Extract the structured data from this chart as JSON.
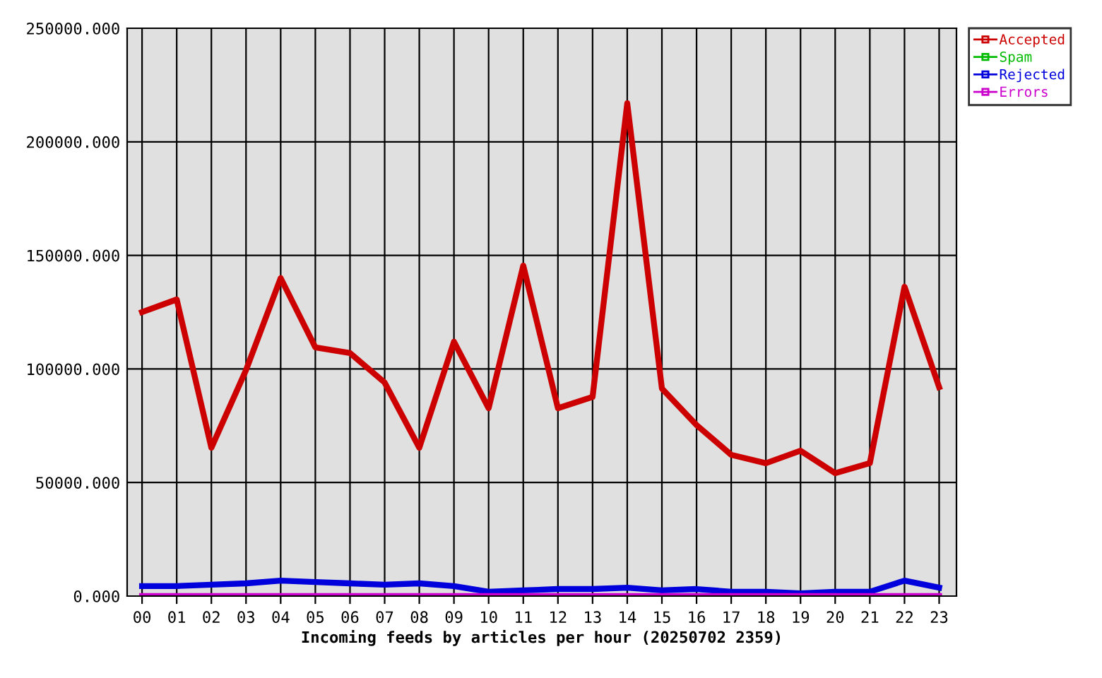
{
  "chart_data": {
    "type": "line",
    "xlabel": "Incoming feeds by articles per hour (20250702 2359)",
    "categories": [
      "00",
      "01",
      "02",
      "03",
      "04",
      "05",
      "06",
      "07",
      "08",
      "09",
      "10",
      "11",
      "12",
      "13",
      "14",
      "15",
      "16",
      "17",
      "18",
      "19",
      "20",
      "21",
      "22",
      "23"
    ],
    "series": [
      {
        "name": "Accepted",
        "color": "#cc0000",
        "values": [
          125000,
          130600,
          65300,
          99500,
          140000,
          109500,
          107000,
          94000,
          65300,
          112000,
          82700,
          145500,
          82700,
          87700,
          217000,
          91400,
          75300,
          62200,
          58500,
          64000,
          54100,
          58500,
          136200,
          92000
        ]
      },
      {
        "name": "Spam",
        "color": "#00bb00",
        "values": [
          null,
          null,
          null,
          null,
          null,
          null,
          null,
          null,
          null,
          null,
          null,
          null,
          null,
          null,
          null,
          null,
          null,
          null,
          null,
          null,
          null,
          null,
          null,
          null
        ]
      },
      {
        "name": "Rejected",
        "color": "#0000dd",
        "values": [
          4400,
          4400,
          5000,
          5600,
          6800,
          6200,
          5600,
          5000,
          5600,
          4400,
          1900,
          2500,
          3100,
          3100,
          3700,
          2500,
          3100,
          1900,
          1900,
          1200,
          1900,
          1900,
          6800,
          3700
        ]
      },
      {
        "name": "Errors",
        "color": "#cc00cc",
        "values": [
          0,
          0,
          0,
          0,
          0,
          0,
          0,
          0,
          0,
          0,
          0,
          0,
          0,
          0,
          0,
          0,
          0,
          0,
          0,
          0,
          0,
          0,
          0,
          0
        ]
      }
    ],
    "ylim": [
      0,
      250000
    ],
    "yticks": [
      {
        "value": 0,
        "label": "0.000"
      },
      {
        "value": 50000,
        "label": "50000.000"
      },
      {
        "value": 100000,
        "label": "100000.000"
      },
      {
        "value": 150000,
        "label": "150000.000"
      },
      {
        "value": 200000,
        "label": "200000.000"
      },
      {
        "value": 250000,
        "label": "250000.000"
      }
    ],
    "grid": true,
    "legend": "top right",
    "marker": "none",
    "line_style": "solid"
  }
}
